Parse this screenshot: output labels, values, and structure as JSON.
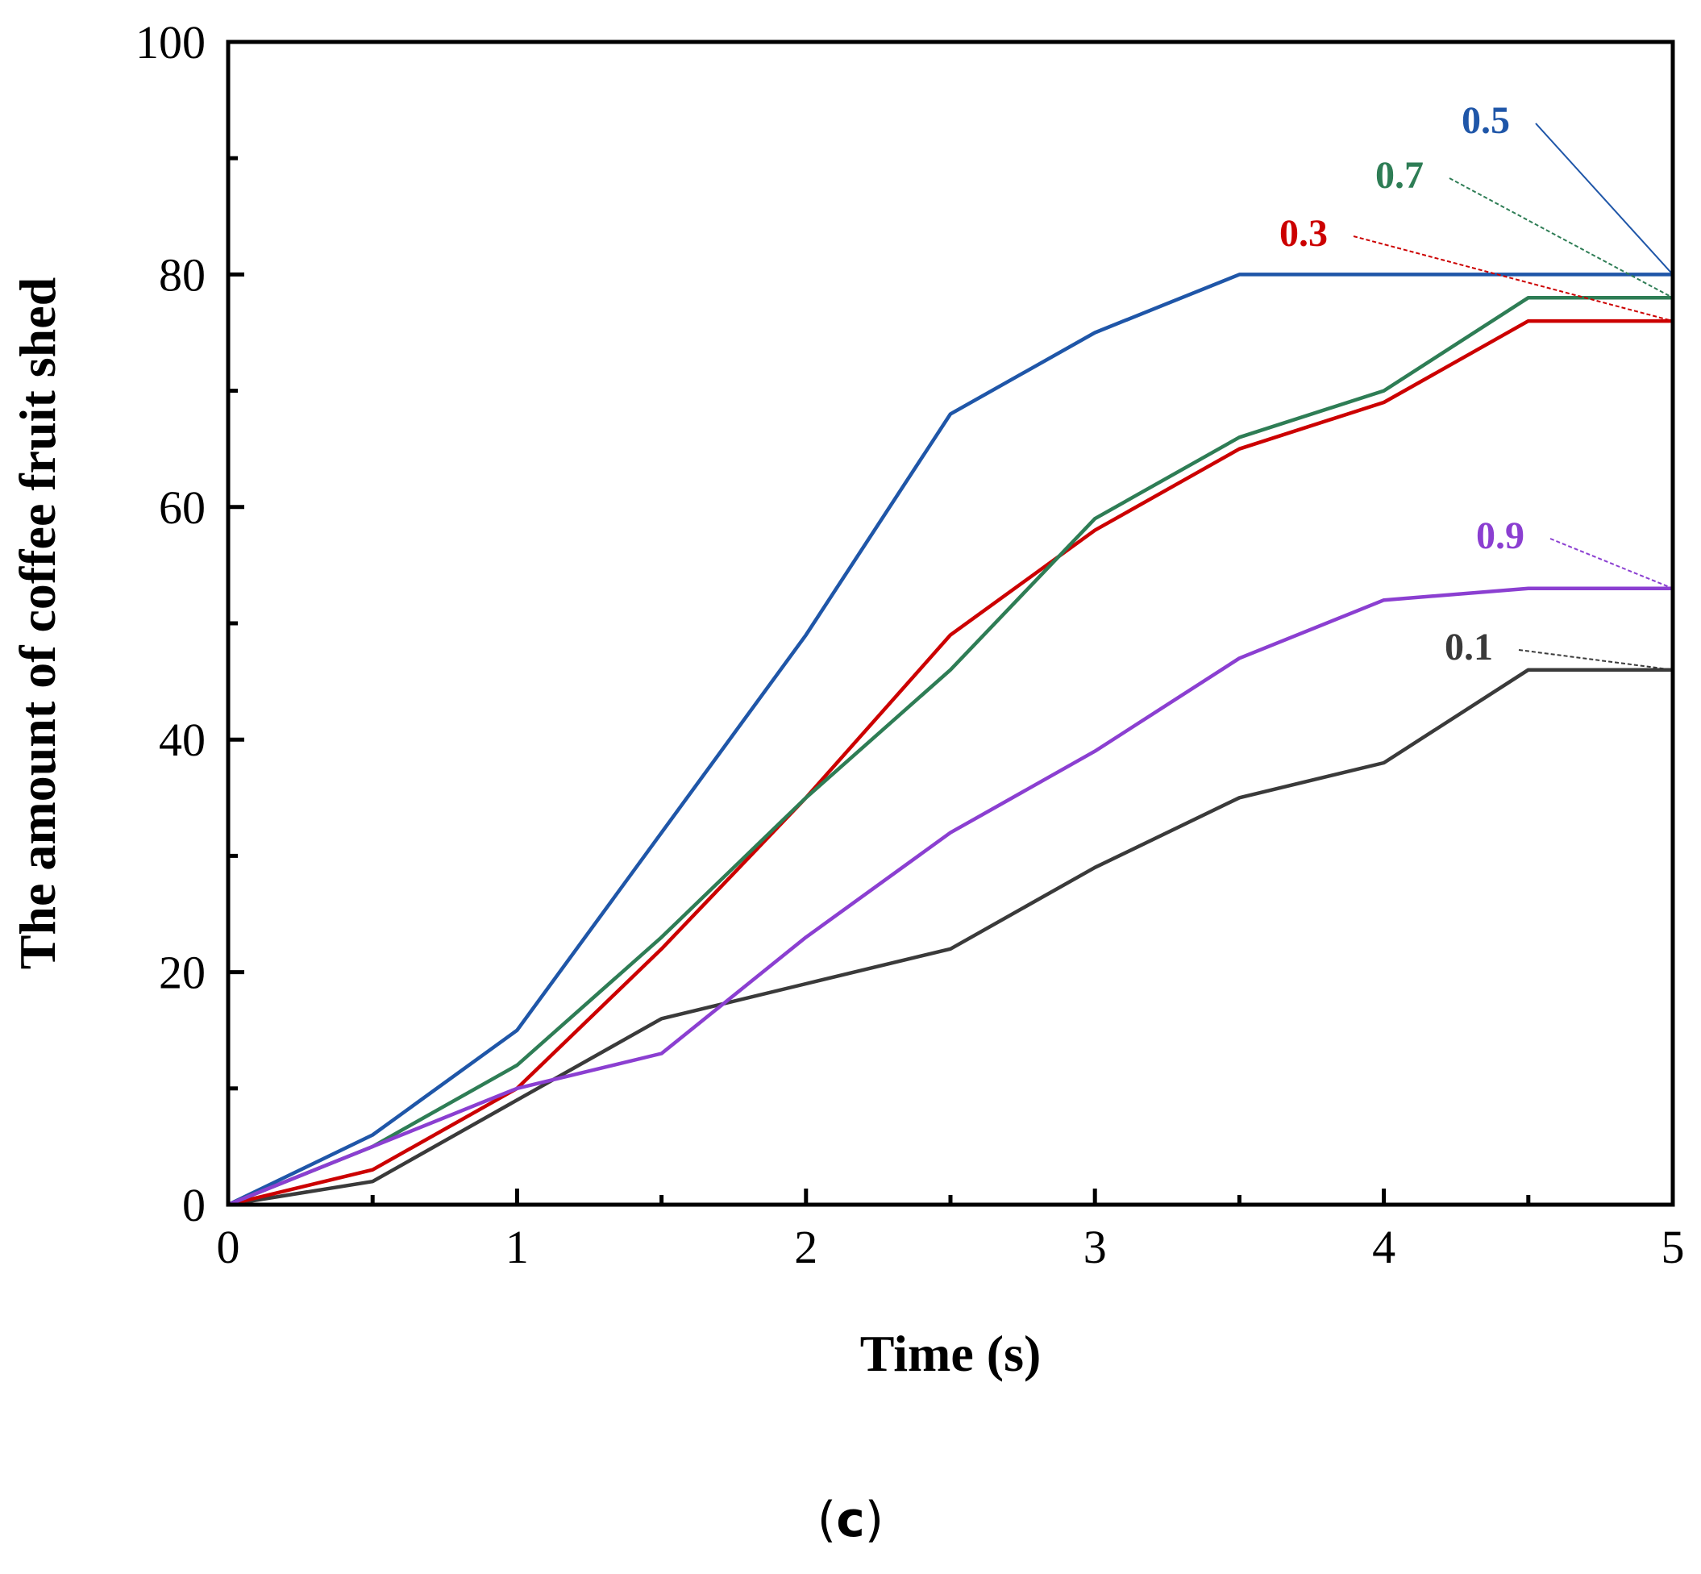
{
  "chart_data": {
    "type": "line",
    "title": "",
    "xlabel": "Time (s)",
    "ylabel": "The amount of coffee fruit shed",
    "xlim": [
      0,
      5
    ],
    "ylim": [
      0,
      100
    ],
    "x_ticks": [
      "0",
      "1",
      "2",
      "3",
      "4",
      "5"
    ],
    "y_ticks": [
      "0",
      "20",
      "40",
      "60",
      "80",
      "100"
    ],
    "grid": false,
    "legend": "inline labels at right end of each line",
    "x": [
      0,
      0.5,
      1,
      1.5,
      2,
      2.5,
      3,
      3.5,
      4,
      4.5,
      5
    ],
    "series": [
      {
        "name": "0.1",
        "color": "#3a3a3a",
        "values": [
          0,
          2,
          9,
          16,
          19,
          22,
          29,
          35,
          38,
          46,
          46
        ]
      },
      {
        "name": "0.3",
        "color": "#cc0000",
        "values": [
          0,
          3,
          10,
          22,
          35,
          49,
          58,
          65,
          69,
          76,
          76
        ]
      },
      {
        "name": "0.5",
        "color": "#1f56a8",
        "values": [
          0,
          6,
          15,
          32,
          49,
          68,
          75,
          80,
          80,
          80,
          80
        ]
      },
      {
        "name": "0.7",
        "color": "#2e7d55",
        "values": [
          0,
          5,
          12,
          23,
          35,
          46,
          59,
          66,
          70,
          78,
          78
        ]
      },
      {
        "name": "0.9",
        "color": "#8b3fd1",
        "values": [
          0,
          5,
          10,
          13,
          23,
          32,
          39,
          47,
          52,
          53,
          53
        ]
      }
    ]
  },
  "panel_label": {
    "open": "(",
    "letter": "c",
    "close": ")"
  }
}
